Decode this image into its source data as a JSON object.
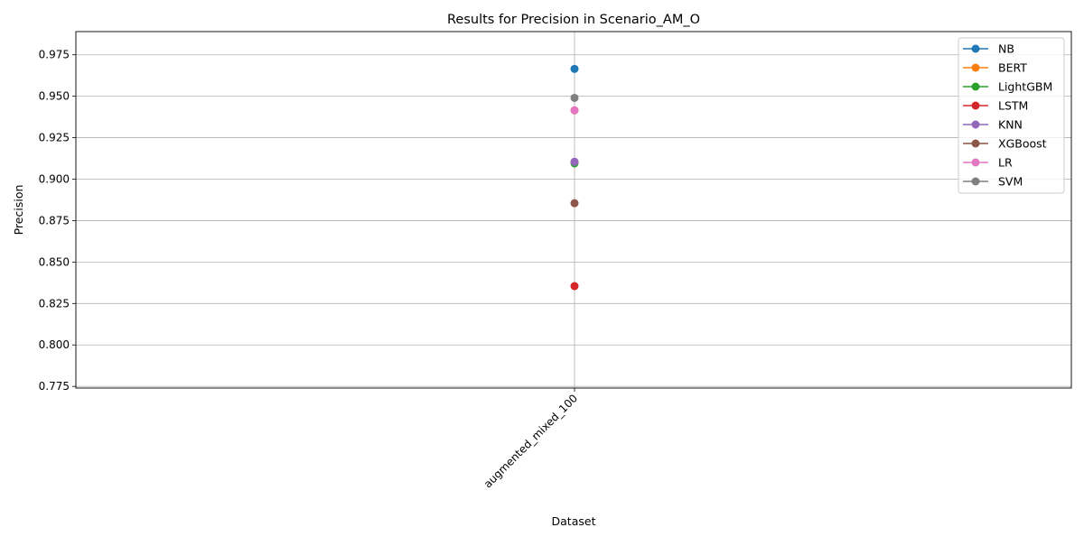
{
  "chart_data": {
    "type": "line",
    "title": "Results for Precision in Scenario_AM_O",
    "xlabel": "Dataset",
    "ylabel": "Precision",
    "categories": [
      "augmented_mixed_100"
    ],
    "ylim": [
      0.774,
      0.989
    ],
    "yticks": [
      0.775,
      0.8,
      0.825,
      0.85,
      0.875,
      0.9,
      0.925,
      0.95,
      0.975
    ],
    "ytick_labels": [
      "0.775",
      "0.800",
      "0.825",
      "0.850",
      "0.875",
      "0.900",
      "0.925",
      "0.950",
      "0.975"
    ],
    "grid": true,
    "legend_position": "top-right",
    "series": [
      {
        "name": "NB",
        "color": "#1f77b4",
        "values": [
          0.9665
        ]
      },
      {
        "name": "BERT",
        "color": "#ff7f0e",
        "values": [
          0.9415
        ]
      },
      {
        "name": "LightGBM",
        "color": "#2ca02c",
        "values": [
          0.9095
        ]
      },
      {
        "name": "LSTM",
        "color": "#d62728",
        "values": [
          0.8355
        ]
      },
      {
        "name": "KNN",
        "color": "#9467bd",
        "values": [
          0.9105
        ]
      },
      {
        "name": "XGBoost",
        "color": "#8c564b",
        "values": [
          0.8855
        ]
      },
      {
        "name": "LR",
        "color": "#e377c2",
        "values": [
          0.9415
        ]
      },
      {
        "name": "SVM",
        "color": "#7f7f7f",
        "values": [
          0.949
        ]
      }
    ]
  }
}
